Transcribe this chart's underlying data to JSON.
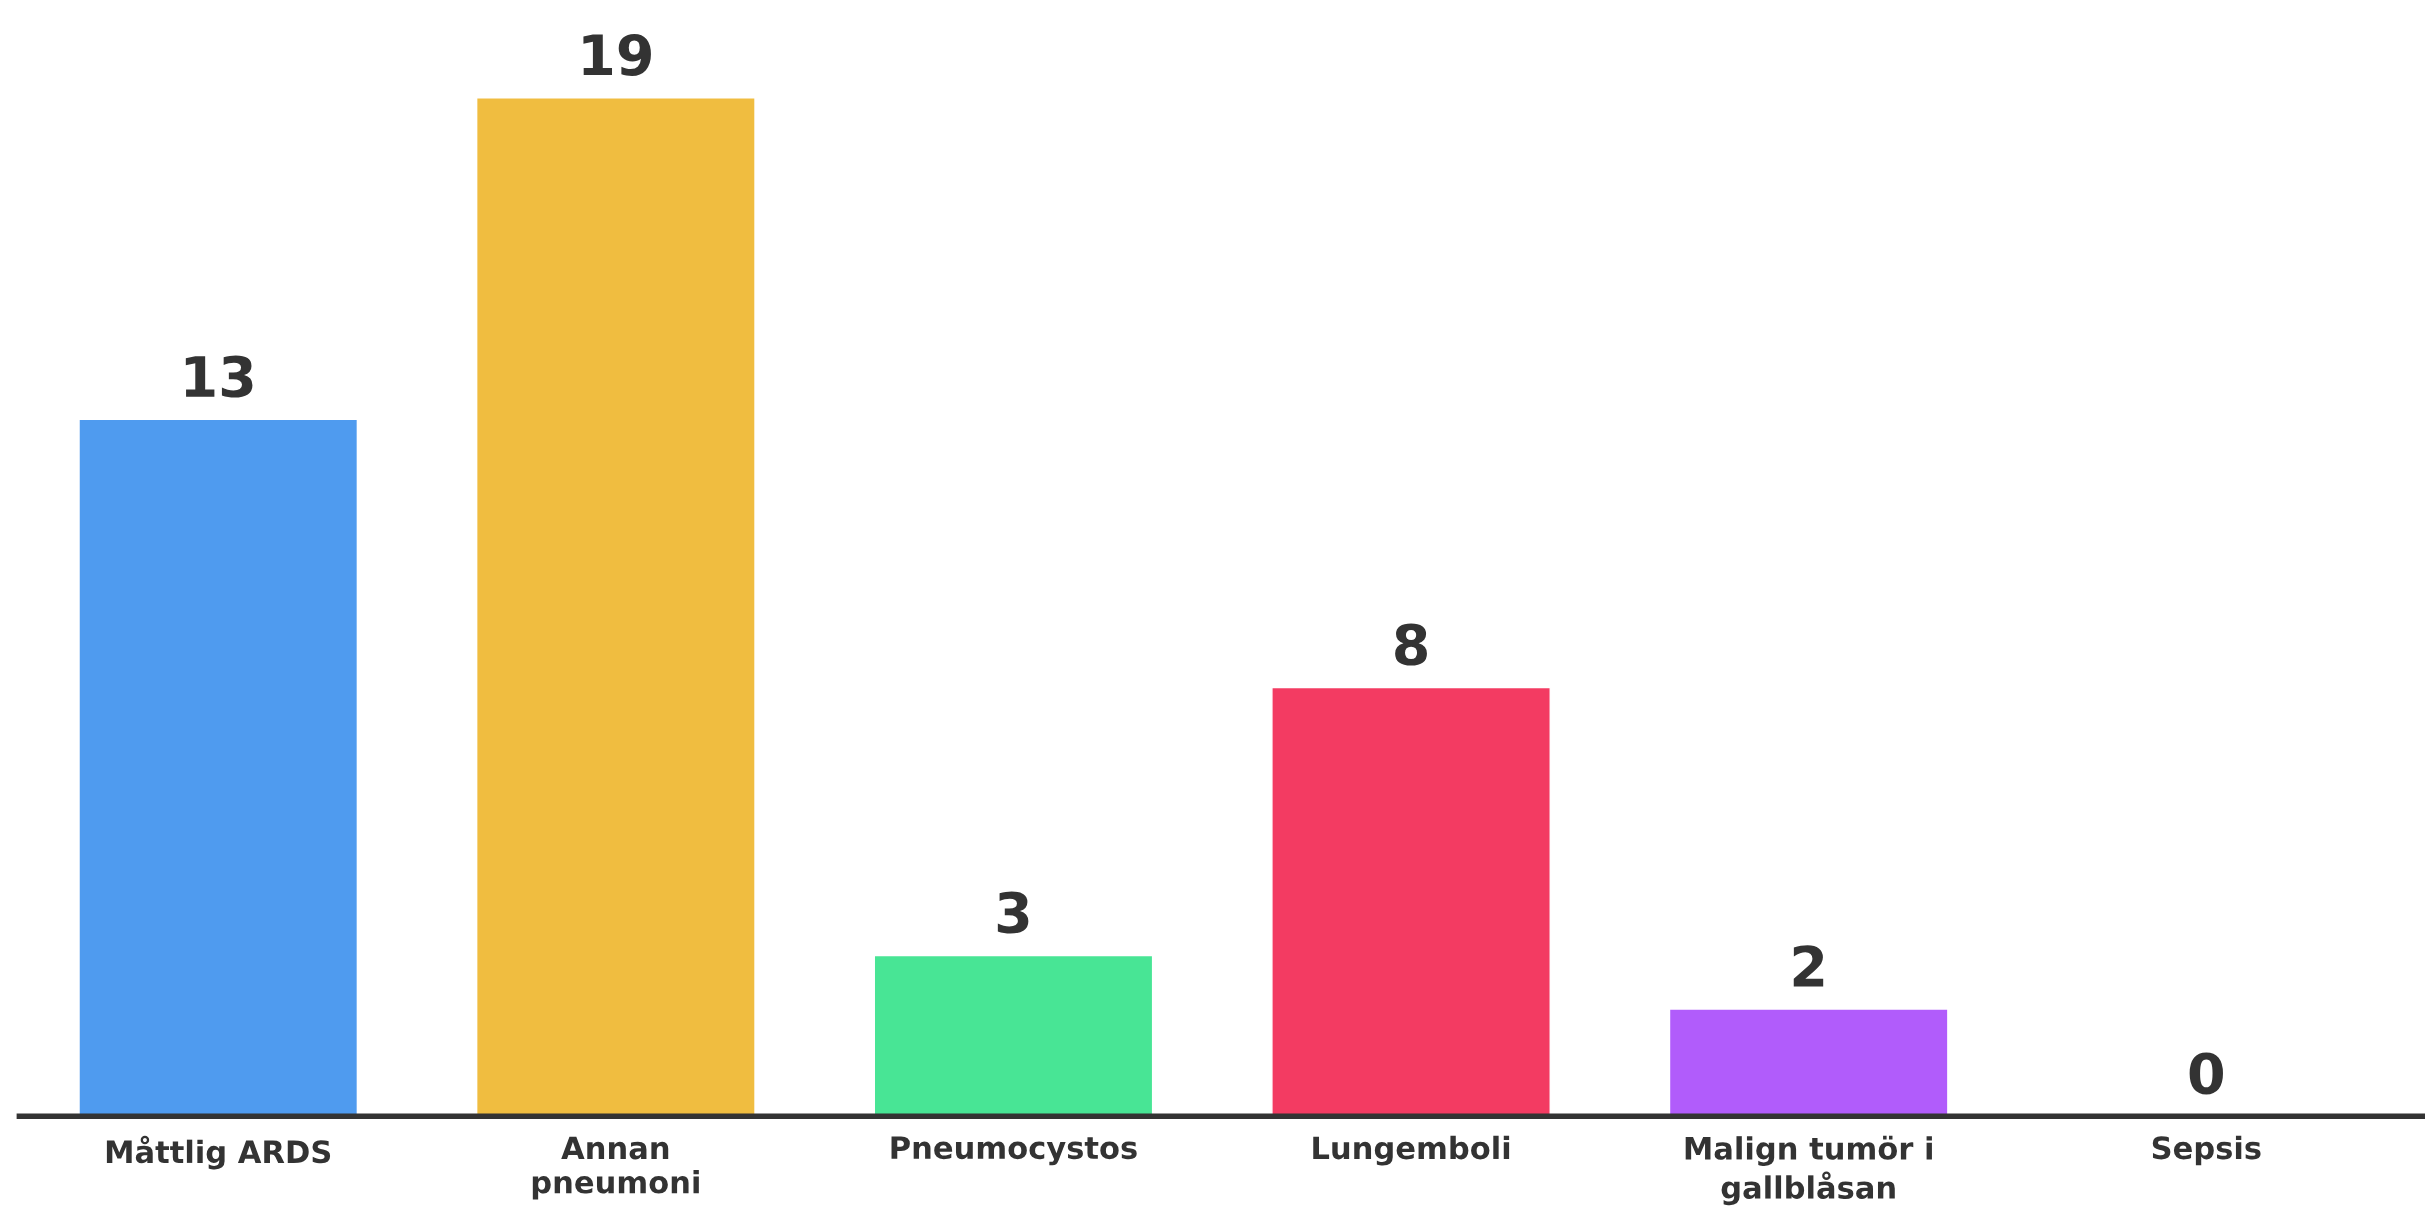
{
  "chart_data": {
    "type": "bar",
    "categories": [
      "Måttlig ARDS",
      "Annan\npneumoni",
      "Pneumocystos",
      "Lungemboli",
      "Malign tumör i\ngallblåsan",
      "Sepsis"
    ],
    "values": [
      13,
      19,
      3,
      8,
      2,
      0
    ],
    "colors": [
      "#4f9bef",
      "#f0bd40",
      "#48e595",
      "#f33b62",
      "#b15cfb",
      null
    ],
    "tick_labels": "x",
    "data_labels": true,
    "grid": false,
    "legend": false
  }
}
